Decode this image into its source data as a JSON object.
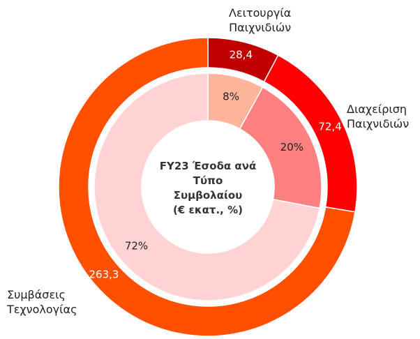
{
  "chart_data": {
    "type": "nested-donut",
    "title": [
      "FY23 Έσοδα ανά",
      "Τύπο",
      "Συμβολαίου",
      "(€ εκατ., %)"
    ],
    "categories": [
      "Λειτουργία Παιχνιδιών",
      "Διαχείριση Παιχνιδιών",
      "Συμβάσεις Τεχνολογίας"
    ],
    "series": [
      {
        "values": [
          28.4,
          72.4,
          263.3
        ],
        "value_labels": [
          "28,4",
          "72,4",
          "263,3"
        ],
        "colors": [
          "#c00000",
          "#ff0000",
          "#ff5000"
        ]
      },
      {
        "values": [
          8,
          20,
          72
        ],
        "value_labels": [
          "8%",
          "20%",
          "72%"
        ],
        "colors": [
          "#ffb59b",
          "#ff8080",
          "#ffd3d3"
        ]
      }
    ]
  }
}
